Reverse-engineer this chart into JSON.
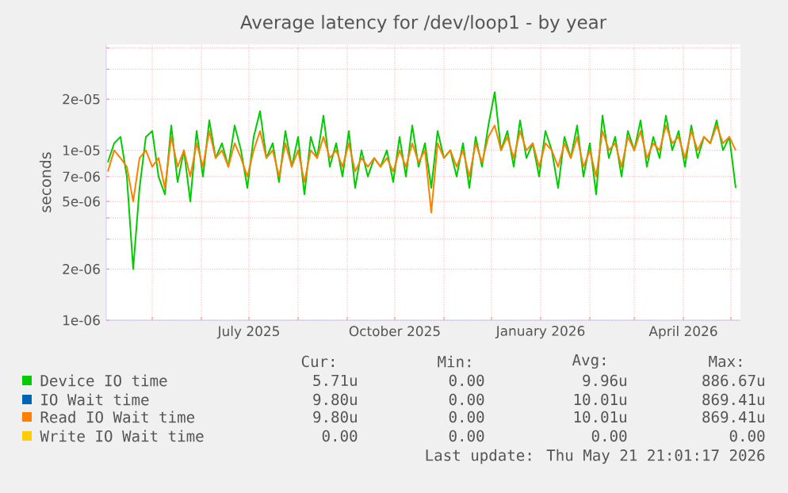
{
  "chart_data": {
    "type": "line",
    "title": "Average latency for /dev/loop1 - by year",
    "ylabel": "seconds",
    "log": "y",
    "grid": true,
    "legend": "bottom",
    "xlim": [
      "2025-04-02",
      "2026-05-07"
    ],
    "xticks": [
      {
        "value": "2025-05-01",
        "label": null
      },
      {
        "value": "2025-06-01",
        "label": null
      },
      {
        "value": "2025-07-01",
        "label": "July 2025"
      },
      {
        "value": "2025-08-01",
        "label": null
      },
      {
        "value": "2025-09-01",
        "label": null
      },
      {
        "value": "2025-10-01",
        "label": "October 2025"
      },
      {
        "value": "2025-11-01",
        "label": null
      },
      {
        "value": "2025-12-01",
        "label": null
      },
      {
        "value": "2026-01-01",
        "label": "January 2026"
      },
      {
        "value": "2026-02-01",
        "label": null
      },
      {
        "value": "2026-03-01",
        "label": null
      },
      {
        "value": "2026-04-01",
        "label": "April 2026"
      },
      {
        "value": "2026-05-01",
        "label": null
      }
    ],
    "ylim": [
      1e-06,
      4.2e-05
    ],
    "yticks": [
      {
        "value": 1e-06,
        "label": "1e-06"
      },
      {
        "value": 2e-06,
        "label": "2e-06"
      },
      {
        "value": 3e-06,
        "label": null
      },
      {
        "value": 4e-06,
        "label": null
      },
      {
        "value": 5e-06,
        "label": "5e-06"
      },
      {
        "value": 7e-06,
        "label": "7e-06"
      },
      {
        "value": 1e-05,
        "label": "1e-05"
      },
      {
        "value": 2e-05,
        "label": "2e-05"
      },
      {
        "value": 3e-05,
        "label": null
      },
      {
        "value": 4e-05,
        "label": null
      }
    ],
    "x": [
      "2025-04-03",
      "2025-04-07",
      "2025-04-11",
      "2025-04-15",
      "2025-04-19",
      "2025-04-23",
      "2025-04-27",
      "2025-05-01",
      "2025-05-05",
      "2025-05-09",
      "2025-05-13",
      "2025-05-17",
      "2025-05-21",
      "2025-05-25",
      "2025-05-29",
      "2025-06-02",
      "2025-06-06",
      "2025-06-10",
      "2025-06-14",
      "2025-06-18",
      "2025-06-22",
      "2025-06-26",
      "2025-06-30",
      "2025-07-04",
      "2025-07-08",
      "2025-07-12",
      "2025-07-16",
      "2025-07-20",
      "2025-07-24",
      "2025-07-28",
      "2025-08-01",
      "2025-08-05",
      "2025-08-09",
      "2025-08-13",
      "2025-08-17",
      "2025-08-21",
      "2025-08-25",
      "2025-08-29",
      "2025-09-02",
      "2025-09-06",
      "2025-09-10",
      "2025-09-14",
      "2025-09-18",
      "2025-09-22",
      "2025-09-26",
      "2025-09-30",
      "2025-10-04",
      "2025-10-08",
      "2025-10-12",
      "2025-10-16",
      "2025-10-20",
      "2025-10-24",
      "2025-10-28",
      "2025-11-01",
      "2025-11-05",
      "2025-11-09",
      "2025-11-13",
      "2025-11-17",
      "2025-11-21",
      "2025-11-25",
      "2025-11-29",
      "2025-12-03",
      "2025-12-07",
      "2025-12-11",
      "2025-12-15",
      "2025-12-19",
      "2025-12-23",
      "2025-12-27",
      "2025-12-31",
      "2026-01-04",
      "2026-01-08",
      "2026-01-12",
      "2026-01-16",
      "2026-01-20",
      "2026-01-24",
      "2026-01-28",
      "2026-02-01",
      "2026-02-05",
      "2026-02-09",
      "2026-02-13",
      "2026-02-17",
      "2026-02-21",
      "2026-02-25",
      "2026-03-01",
      "2026-03-05",
      "2026-03-09",
      "2026-03-13",
      "2026-03-17",
      "2026-03-21",
      "2026-03-25",
      "2026-03-29",
      "2026-04-02",
      "2026-04-06",
      "2026-04-10",
      "2026-04-14",
      "2026-04-18",
      "2026-04-22",
      "2026-04-26",
      "2026-04-30",
      "2026-05-04"
    ],
    "series": [
      {
        "name": "Device IO time",
        "color": "#00cc00",
        "values": [
          8.5e-06,
          1.1e-05,
          1.2e-05,
          7e-06,
          2e-06,
          6e-06,
          1.2e-05,
          1.3e-05,
          7e-06,
          5.5e-06,
          1.4e-05,
          6.5e-06,
          1e-05,
          5e-06,
          1.3e-05,
          7e-06,
          1.5e-05,
          9e-06,
          1.1e-05,
          8e-06,
          1.4e-05,
          1e-05,
          6e-06,
          1.2e-05,
          1.7e-05,
          9e-06,
          1.1e-05,
          6.5e-06,
          1.3e-05,
          8e-06,
          1.2e-05,
          5.5e-06,
          1.2e-05,
          9e-06,
          1.6e-05,
          8e-06,
          1.1e-05,
          7e-06,
          1.3e-05,
          6e-06,
          1e-05,
          7e-06,
          9e-06,
          8e-06,
          1e-05,
          6.5e-06,
          1.2e-05,
          7e-06,
          1.4e-05,
          8e-06,
          1.1e-05,
          6e-06,
          1.3e-05,
          9e-06,
          1e-05,
          7e-06,
          1.1e-05,
          6e-06,
          1.2e-05,
          8e-06,
          1.4e-05,
          2.2e-05,
          1e-05,
          1.3e-05,
          8e-06,
          1.5e-05,
          9e-06,
          1.1e-05,
          7e-06,
          1.3e-05,
          1e-05,
          6e-06,
          1.2e-05,
          9e-06,
          1.4e-05,
          7e-06,
          1.1e-05,
          5.5e-06,
          1.6e-05,
          9e-06,
          1.2e-05,
          7e-06,
          1.3e-05,
          1e-05,
          1.5e-05,
          8e-06,
          1.2e-05,
          9e-06,
          1.6e-05,
          1e-05,
          1.3e-05,
          8e-06,
          1.4e-05,
          9e-06,
          1.2e-05,
          1.1e-05,
          1.5e-05,
          1e-05,
          1.2e-05,
          6e-06
        ]
      },
      {
        "name": "IO Wait time",
        "color": "#0066b3",
        "values": [
          null,
          null,
          null,
          null,
          null,
          null,
          null,
          null,
          null,
          null,
          null,
          null,
          null,
          null,
          null,
          null,
          null,
          null,
          null,
          null,
          null,
          null,
          null,
          null,
          null,
          null,
          null,
          null,
          null,
          null,
          null,
          null,
          null,
          null,
          null,
          null,
          null,
          null,
          null,
          null,
          null,
          null,
          null,
          null,
          null,
          null,
          null,
          null,
          null,
          null,
          null,
          null,
          null,
          null,
          null,
          null,
          null,
          null,
          null,
          null,
          null,
          null,
          null,
          null,
          null,
          null,
          null,
          null,
          null,
          null,
          null,
          null,
          null,
          null,
          null,
          null,
          null,
          null,
          null,
          null,
          null,
          null,
          null,
          null,
          null,
          null,
          null,
          null,
          null,
          null,
          null,
          null,
          null,
          null,
          null,
          null,
          null,
          null,
          null,
          null
        ]
      },
      {
        "name": "Read IO Wait time",
        "color": "#ff8000",
        "values": [
          7.5e-06,
          1e-05,
          9e-06,
          8e-06,
          5e-06,
          9e-06,
          1e-05,
          8e-06,
          9e-06,
          6e-06,
          1.2e-05,
          8e-06,
          1e-05,
          7e-06,
          1.1e-05,
          8e-06,
          1.3e-05,
          9e-06,
          1e-05,
          8e-06,
          1.1e-05,
          9e-06,
          7e-06,
          1e-05,
          1.3e-05,
          9e-06,
          1e-05,
          7e-06,
          1.1e-05,
          8e-06,
          1e-05,
          6.5e-06,
          1e-05,
          9e-06,
          1.2e-05,
          9e-06,
          1e-05,
          8e-06,
          1.1e-05,
          7.5e-06,
          9e-06,
          8e-06,
          9e-06,
          8e-06,
          9e-06,
          7.5e-06,
          1e-05,
          8e-06,
          1.1e-05,
          8.5e-06,
          1e-05,
          4.3e-06,
          1.1e-05,
          9e-06,
          1e-05,
          8e-06,
          1e-05,
          7e-06,
          1.1e-05,
          8.5e-06,
          1.2e-05,
          1.4e-05,
          1e-05,
          1.2e-05,
          9e-06,
          1.3e-05,
          1e-05,
          1.1e-05,
          8e-06,
          1.1e-05,
          1e-05,
          8e-06,
          1.1e-05,
          9e-06,
          1.2e-05,
          8e-06,
          1e-05,
          7e-06,
          1.3e-05,
          1e-05,
          1.1e-05,
          8e-06,
          1.2e-05,
          1e-05,
          1.3e-05,
          9e-06,
          1.1e-05,
          1e-05,
          1.4e-05,
          1.1e-05,
          1.2e-05,
          9e-06,
          1.3e-05,
          1e-05,
          1.2e-05,
          1.1e-05,
          1.4e-05,
          1.1e-05,
          1.2e-05,
          1e-05
        ]
      },
      {
        "name": "Write IO Wait time",
        "color": "#ffcc00",
        "values": [
          null,
          null,
          null,
          null,
          null,
          null,
          null,
          null,
          null,
          null,
          null,
          null,
          null,
          null,
          null,
          null,
          null,
          null,
          null,
          null,
          null,
          null,
          null,
          null,
          null,
          null,
          null,
          null,
          null,
          null,
          null,
          null,
          null,
          null,
          null,
          null,
          null,
          null,
          null,
          null,
          null,
          null,
          null,
          null,
          null,
          null,
          null,
          null,
          null,
          null,
          null,
          null,
          null,
          null,
          null,
          null,
          null,
          null,
          null,
          null,
          null,
          null,
          null,
          null,
          null,
          null,
          null,
          null,
          null,
          null,
          null,
          null,
          null,
          null,
          null,
          null,
          null,
          null,
          null,
          null,
          null,
          null,
          null,
          null,
          null,
          null,
          null,
          null,
          null,
          null,
          null,
          null,
          null,
          null,
          null,
          null,
          null,
          null,
          null,
          null
        ]
      }
    ],
    "annotations": [
      "Cur:",
      "Min:",
      "Avg:",
      "Max:",
      "5.71u",
      "0.00",
      "9.96u",
      "886.67u",
      "9.80u",
      "0.00",
      "10.01u",
      "869.41u",
      "9.80u",
      "0.00",
      "10.01u",
      "869.41u",
      "0.00",
      "0.00",
      "0.00",
      "0.00",
      "Last update: Thu May 21 21:01:17 2026"
    ]
  }
}
